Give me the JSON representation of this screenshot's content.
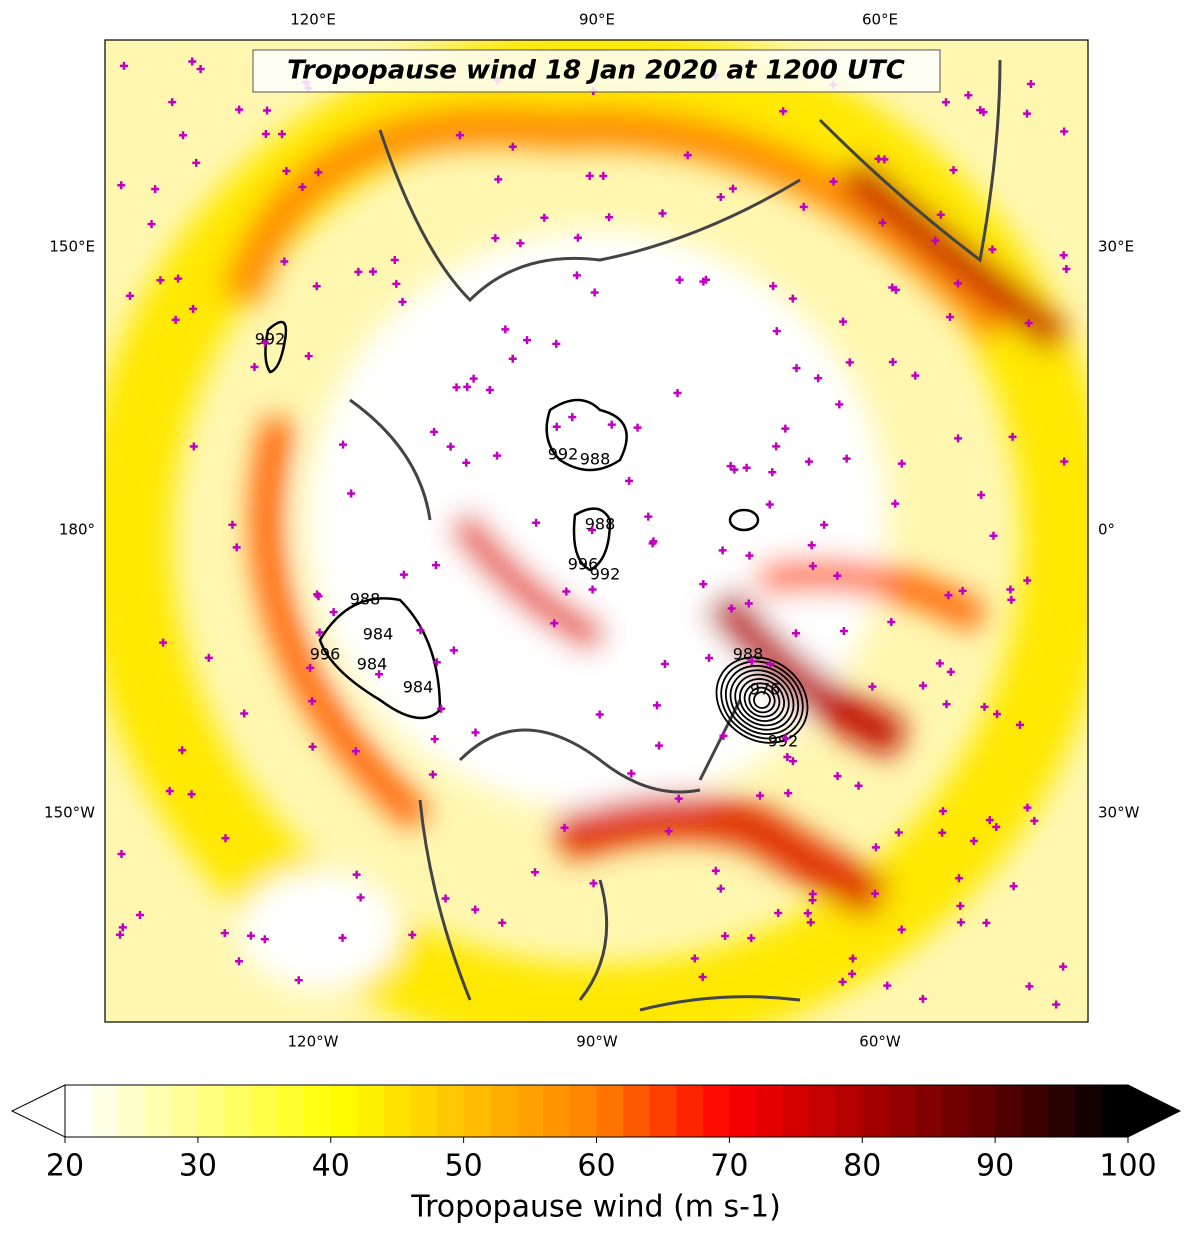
{
  "map": {
    "title": "Tropopause wind 18 Jan 2020 at 1200 UTC",
    "meridian_labels": [
      "120°E",
      "90°E",
      "60°E",
      "150°E",
      "180°",
      "150°W",
      "120°W",
      "90°W",
      "60°W",
      "30°E",
      "0°",
      "30°W"
    ],
    "contour_labels": [
      992,
      992,
      988,
      988,
      996,
      992,
      988,
      984,
      996,
      984,
      984,
      988,
      976,
      992
    ],
    "colorbar": {
      "label": "Tropopause wind (m s-1)",
      "lim": [
        20,
        100
      ],
      "ticks": [
        20,
        30,
        40,
        50,
        60,
        70,
        80,
        90,
        100
      ],
      "colors": [
        "#ffffff",
        "#ffff80",
        "#ffff00",
        "#ffc000",
        "#ff8000",
        "#ff0000",
        "#b00000",
        "#600000",
        "#000000"
      ]
    }
  }
}
